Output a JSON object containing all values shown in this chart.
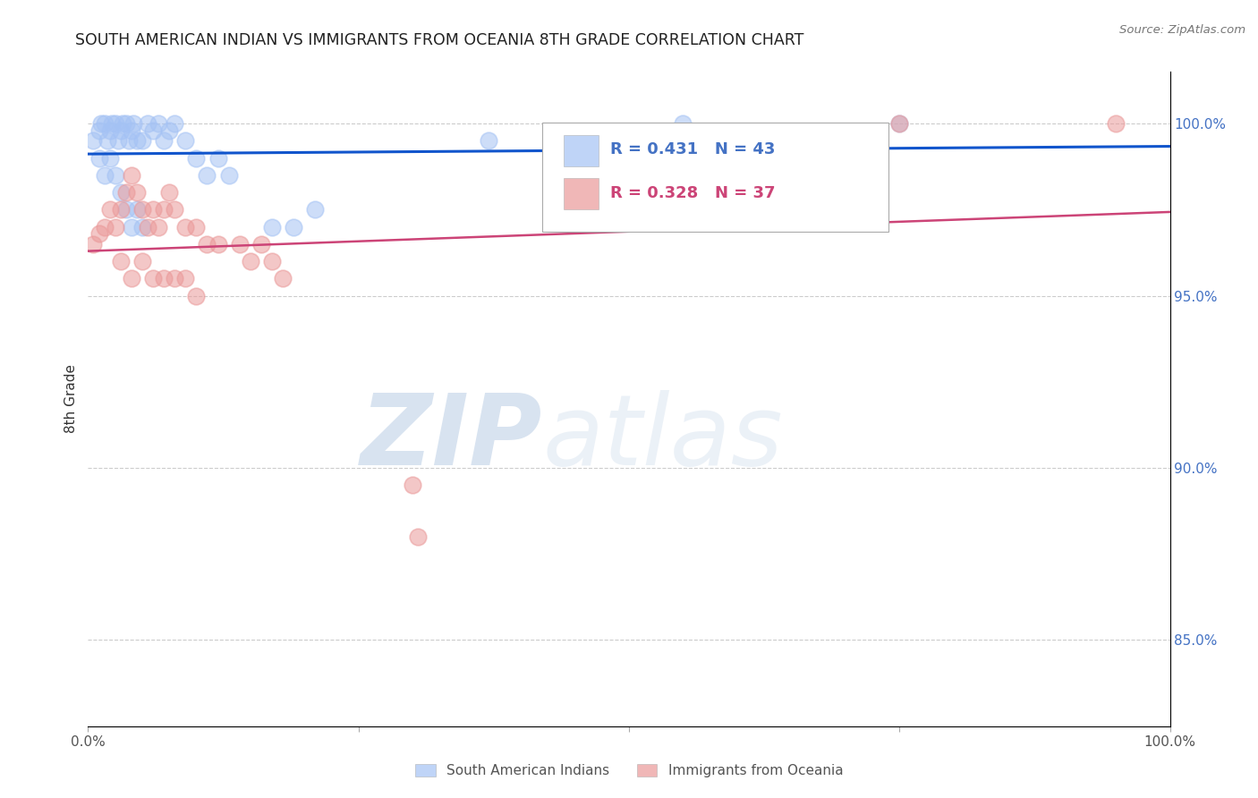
{
  "title": "SOUTH AMERICAN INDIAN VS IMMIGRANTS FROM OCEANIA 8TH GRADE CORRELATION CHART",
  "source": "Source: ZipAtlas.com",
  "ylabel": "8th Grade",
  "watermark_zip": "ZIP",
  "watermark_atlas": "atlas",
  "legend_r1": "R = 0.431",
  "legend_n1": "N = 43",
  "legend_r2": "R = 0.328",
  "legend_n2": "N = 37",
  "blue_color": "#a4c2f4",
  "pink_color": "#ea9999",
  "blue_line_color": "#1155cc",
  "pink_line_color": "#cc4477",
  "right_yticks": [
    85.0,
    90.0,
    95.0,
    100.0
  ],
  "blue_x": [
    0.5,
    1.0,
    1.2,
    1.5,
    1.8,
    2.0,
    2.2,
    2.5,
    2.8,
    3.0,
    3.2,
    3.5,
    3.8,
    4.0,
    4.2,
    4.5,
    5.0,
    5.5,
    6.0,
    6.5,
    7.0,
    7.5,
    8.0,
    9.0,
    10.0,
    11.0,
    12.0,
    13.0,
    1.0,
    1.5,
    2.0,
    2.5,
    3.0,
    3.5,
    4.0,
    4.5,
    5.0,
    17.0,
    19.0,
    21.0,
    37.0,
    55.0,
    75.0
  ],
  "blue_y": [
    99.5,
    99.8,
    100.0,
    100.0,
    99.5,
    99.8,
    100.0,
    100.0,
    99.5,
    99.8,
    100.0,
    100.0,
    99.5,
    99.8,
    100.0,
    99.5,
    99.5,
    100.0,
    99.8,
    100.0,
    99.5,
    99.8,
    100.0,
    99.5,
    99.0,
    98.5,
    99.0,
    98.5,
    99.0,
    98.5,
    99.0,
    98.5,
    98.0,
    97.5,
    97.0,
    97.5,
    97.0,
    97.0,
    97.0,
    97.5,
    99.5,
    100.0,
    100.0
  ],
  "pink_x": [
    0.5,
    1.0,
    1.5,
    2.0,
    2.5,
    3.0,
    3.5,
    4.0,
    4.5,
    5.0,
    5.5,
    6.0,
    6.5,
    7.0,
    7.5,
    8.0,
    9.0,
    10.0,
    11.0,
    12.0,
    14.0,
    15.0,
    16.0,
    17.0,
    18.0,
    3.0,
    4.0,
    5.0,
    6.0,
    7.0,
    8.0,
    9.0,
    10.0,
    30.0,
    30.5,
    75.0,
    95.0
  ],
  "pink_y": [
    96.5,
    96.8,
    97.0,
    97.5,
    97.0,
    97.5,
    98.0,
    98.5,
    98.0,
    97.5,
    97.0,
    97.5,
    97.0,
    97.5,
    98.0,
    97.5,
    97.0,
    97.0,
    96.5,
    96.5,
    96.5,
    96.0,
    96.5,
    96.0,
    95.5,
    96.0,
    95.5,
    96.0,
    95.5,
    95.5,
    95.5,
    95.5,
    95.0,
    89.5,
    88.0,
    100.0,
    100.0
  ]
}
